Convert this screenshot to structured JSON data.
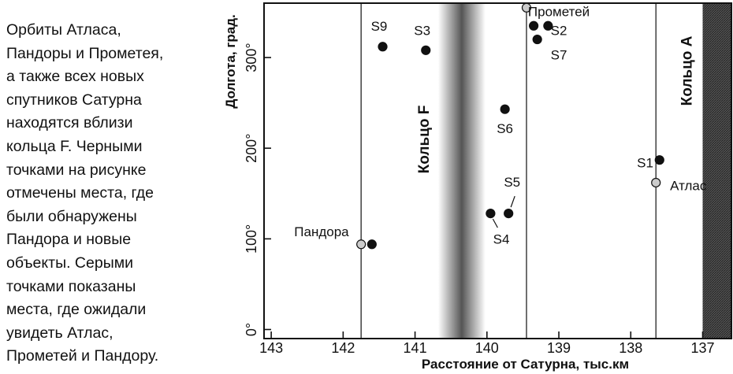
{
  "caption": {
    "lines": [
      "Орбиты Атласа,",
      "Пандоры и Прометея,",
      "а также всех новых",
      "спутников Сатурна",
      "находятся вблизи",
      "кольца F. Черными",
      "точками на рисунке",
      "отмечены места, где",
      "были обнаружены",
      "Пандора и новые",
      "объекты. Серыми",
      "точками показаны",
      "места, где ожидали",
      "увидеть Атлас,",
      "Прометей и Пандору."
    ]
  },
  "chart_data": {
    "type": "scatter",
    "xlabel": "Расстояние от Сатурна, тыс.км",
    "ylabel": "Долгота, град.",
    "xlim": [
      143.1,
      136.6
    ],
    "ylim": [
      -10,
      360
    ],
    "x_ticks": [
      143,
      142,
      141,
      140,
      139,
      138,
      137
    ],
    "x_tick_labels": [
      "143",
      "142",
      "141",
      "140",
      "139",
      "138",
      "137"
    ],
    "y_ticks": [
      0,
      100,
      200,
      300
    ],
    "y_tick_labels": [
      "0°",
      "100°",
      "200°",
      "300°"
    ],
    "grid": false,
    "reference_lines": [
      {
        "x": 141.75
      },
      {
        "x": 139.45
      },
      {
        "x": 137.65
      }
    ],
    "bands": [
      {
        "label": "Кольцо F",
        "x": 140.35,
        "style": "gradient"
      },
      {
        "label": "Кольцо A",
        "x_from": 137.0,
        "x_to": 136.6,
        "style": "hatched"
      }
    ],
    "series": [
      {
        "kind": "black",
        "color": "#111111",
        "points": [
          {
            "label": "S9",
            "x": 141.45,
            "y": 312
          },
          {
            "label": "S3",
            "x": 140.85,
            "y": 308
          },
          {
            "label": "S2",
            "x": 139.35,
            "y": 335
          },
          {
            "label": "S2",
            "x": 139.15,
            "y": 335
          },
          {
            "label": "S7",
            "x": 139.3,
            "y": 320
          },
          {
            "label": "S6",
            "x": 139.75,
            "y": 243
          },
          {
            "label": "S1",
            "x": 137.6,
            "y": 187
          },
          {
            "label": "S4",
            "x": 139.95,
            "y": 128
          },
          {
            "label": "S5",
            "x": 139.7,
            "y": 128
          },
          {
            "label": "Пандора",
            "x": 141.6,
            "y": 94
          }
        ]
      },
      {
        "kind": "grey",
        "color": "#cccccc",
        "points": [
          {
            "label": "Прометей",
            "x": 139.45,
            "y": 355
          },
          {
            "label": "Атлас",
            "x": 137.65,
            "y": 162
          },
          {
            "label": "Пандора",
            "x": 141.75,
            "y": 94
          }
        ]
      }
    ],
    "point_labels": [
      {
        "text": "S9",
        "x": 141.5,
        "y": 335
      },
      {
        "text": "S3",
        "x": 140.9,
        "y": 330
      },
      {
        "text": "S2",
        "x": 139.0,
        "y": 330
      },
      {
        "text": "S7",
        "x": 139.0,
        "y": 303
      },
      {
        "text": "S6",
        "x": 139.75,
        "y": 222
      },
      {
        "text": "S1",
        "x": 137.8,
        "y": 184
      },
      {
        "text": "Атлас",
        "x": 137.2,
        "y": 159
      },
      {
        "text": "S5",
        "x": 139.65,
        "y": 163
      },
      {
        "text": "S4",
        "x": 139.8,
        "y": 100
      },
      {
        "text": "Пандора",
        "x": 142.3,
        "y": 108
      },
      {
        "text": "Прометей",
        "x": 139.0,
        "y": 351
      }
    ]
  }
}
